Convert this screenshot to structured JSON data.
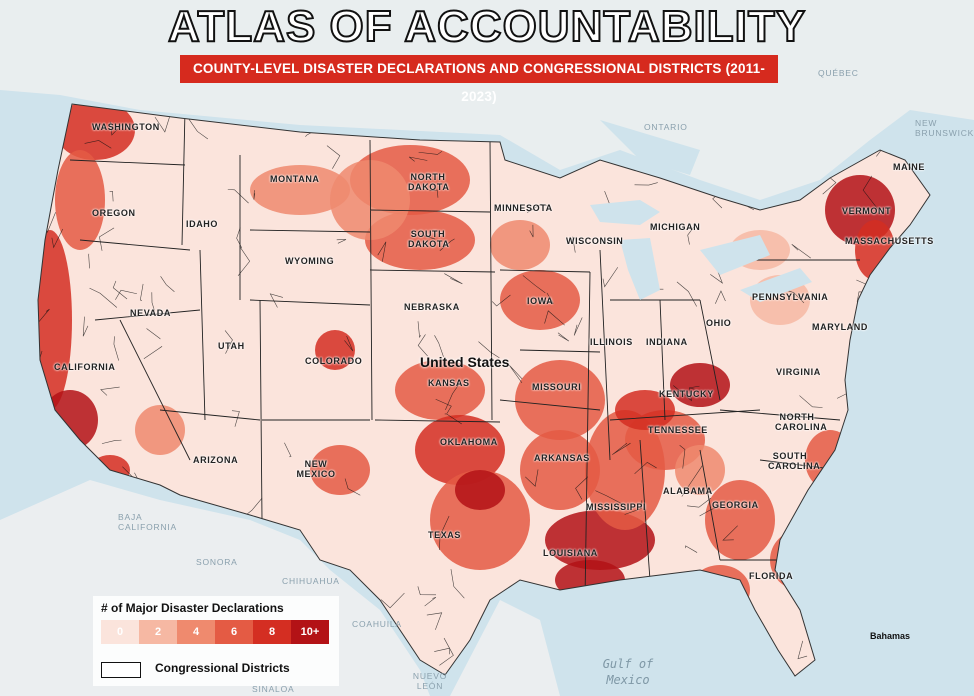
{
  "header": {
    "title": "ATLAS OF ACCOUNTABILITY",
    "subtitle": "COUNTY-LEVEL DISASTER DECLARATIONS AND CONGRESSIONAL DISTRICTS (2011-2023)"
  },
  "states": {
    "washington": "WASHINGTON",
    "oregon": "OREGON",
    "idaho": "IDAHO",
    "montana": "MONTANA",
    "wyoming": "WYOMING",
    "nevada": "NEVADA",
    "utah": "UTAH",
    "colorado": "COLORADO",
    "california": "CALIFORNIA",
    "arizona": "ARIZONA",
    "new_mexico": "NEW MEXICO",
    "north_dakota": "NORTH DAKOTA",
    "south_dakota": "SOUTH DAKOTA",
    "nebraska": "NEBRASKA",
    "kansas": "KANSAS",
    "oklahoma": "OKLAHOMA",
    "texas": "TEXAS",
    "minnesota": "MINNESOTA",
    "iowa": "IOWA",
    "missouri": "MISSOURI",
    "arkansas": "ARKANSAS",
    "louisiana": "LOUISIANA",
    "wisconsin": "WISCONSIN",
    "michigan": "MICHIGAN",
    "illinois": "ILLINOIS",
    "indiana": "INDIANA",
    "ohio": "OHIO",
    "kentucky": "KENTUCKY",
    "tennessee": "TENNESSEE",
    "mississippi": "MISSISSIPPI",
    "alabama": "ALABAMA",
    "georgia": "GEORGIA",
    "florida": "FLORIDA",
    "south_carolina": "SOUTH CAROLINA",
    "north_carolina": "NORTH CAROLINA",
    "virginia": "VIRGINIA",
    "pennsylvania": "PENNSYLVANIA",
    "maryland": "MARYLAND",
    "vermont": "VERMONT",
    "massachusetts": "MASSACHUSETTS",
    "maine": "MAINE"
  },
  "countries": {
    "united_states": "United States",
    "ontario": "ONTARIO",
    "quebec": "QUÉBEC",
    "new_brunswick": "NEW BRUNSWICK",
    "baja": "BAJA CALIFORNIA",
    "sonora": "SONORA",
    "chihuahua": "CHIHUAHUA",
    "coahuila": "COAHUILA",
    "nuevo_leon": "NUEVO LEÓN",
    "sinaloa": "SINALOA",
    "gulf": "Gulf of Mexico",
    "bahamas": "Bahamas"
  },
  "legend": {
    "title": "# of Major Disaster Declarations",
    "bins": [
      "0",
      "2",
      "4",
      "6",
      "8",
      "10+"
    ],
    "colors": [
      "#fbe4dc",
      "#f6b8a3",
      "#ef8a6e",
      "#e45b44",
      "#d42e22",
      "#b31216"
    ],
    "districts_label": "Congressional Districts"
  },
  "colors": {
    "water": "#cfe3ec",
    "land_outside": "#ebeef0",
    "title_bar": "#d62a1e"
  }
}
